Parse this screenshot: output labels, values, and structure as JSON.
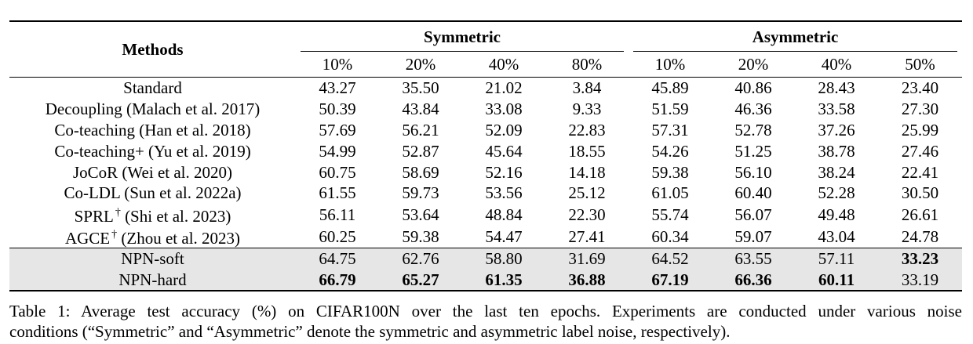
{
  "table": {
    "methods_header": "Methods",
    "group_symmetric": "Symmetric",
    "group_asymmetric": "Asymmetric",
    "noise_levels": [
      "10%",
      "20%",
      "40%",
      "80%",
      "10%",
      "20%",
      "40%",
      "50%"
    ],
    "rows": [
      {
        "method": "Standard",
        "dagger": "",
        "cite": "",
        "values": [
          "43.27",
          "35.50",
          "21.02",
          "3.84",
          "45.89",
          "40.86",
          "28.43",
          "23.40"
        ]
      },
      {
        "method": "Decoupling",
        "dagger": "",
        "cite": "(Malach et al. 2017)",
        "values": [
          "50.39",
          "43.84",
          "33.08",
          "9.33",
          "51.59",
          "46.36",
          "33.58",
          "27.30"
        ]
      },
      {
        "method": "Co-teaching",
        "dagger": "",
        "cite": "(Han et al. 2018)",
        "values": [
          "57.69",
          "56.21",
          "52.09",
          "22.83",
          "57.31",
          "52.78",
          "37.26",
          "25.99"
        ]
      },
      {
        "method": "Co-teaching+",
        "dagger": "",
        "cite": "(Yu et al. 2019)",
        "values": [
          "54.99",
          "52.87",
          "45.64",
          "18.55",
          "54.26",
          "51.25",
          "38.78",
          "27.46"
        ]
      },
      {
        "method": "JoCoR",
        "dagger": "",
        "cite": "(Wei et al. 2020)",
        "values": [
          "60.75",
          "58.69",
          "52.16",
          "14.18",
          "59.38",
          "56.10",
          "38.24",
          "22.41"
        ]
      },
      {
        "method": "Co-LDL",
        "dagger": "",
        "cite": "(Sun et al. 2022a)",
        "values": [
          "61.55",
          "59.73",
          "53.56",
          "25.12",
          "61.05",
          "60.40",
          "52.28",
          "30.50"
        ]
      },
      {
        "method": "SPRL",
        "dagger": "†",
        "cite": "(Shi et al. 2023)",
        "values": [
          "56.11",
          "53.64",
          "48.84",
          "22.30",
          "55.74",
          "56.07",
          "49.48",
          "26.61"
        ]
      },
      {
        "method": "AGCE",
        "dagger": "†",
        "cite": "(Zhou et al. 2023)",
        "values": [
          "60.25",
          "59.38",
          "54.47",
          "27.41",
          "60.34",
          "59.07",
          "43.04",
          "24.78"
        ]
      }
    ],
    "ours": [
      {
        "method": "NPN-soft",
        "values": [
          "64.75",
          "62.76",
          "58.80",
          "31.69",
          "64.52",
          "63.55",
          "57.11",
          "33.23"
        ],
        "bold": [
          false,
          false,
          false,
          false,
          false,
          false,
          false,
          true
        ]
      },
      {
        "method": "NPN-hard",
        "values": [
          "66.79",
          "65.27",
          "61.35",
          "36.88",
          "67.19",
          "66.36",
          "60.11",
          "33.19"
        ],
        "bold": [
          true,
          true,
          true,
          true,
          true,
          true,
          true,
          false
        ]
      }
    ]
  },
  "caption": {
    "line1": "Table 1: Average test accuracy (%) on CIFAR100N over the last ten epochs. Experiments are conducted under various noise",
    "line2": "conditions (“Symmetric” and “Asymmetric” denote the symmetric and asymmetric label noise, respectively)."
  }
}
